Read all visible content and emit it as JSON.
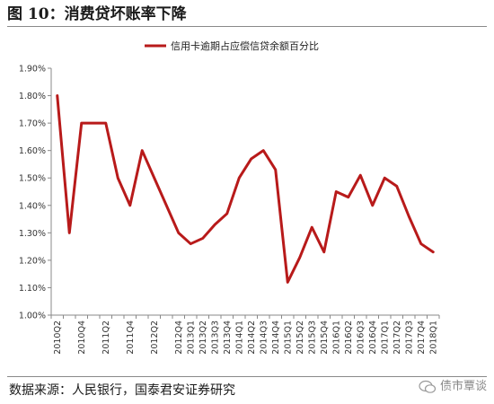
{
  "figure": {
    "title": "图 10：消费贷坏账率下降",
    "source": "数据来源：人民银行，国泰君安证券研究",
    "watermark": "债市覃谈"
  },
  "colors": {
    "series": "#b81a1a",
    "axis": "#888888",
    "text": "#333333"
  },
  "chart_data": {
    "type": "line",
    "title": "",
    "xlabel": "",
    "ylabel": "",
    "ylim": [
      1.0,
      1.9
    ],
    "y_ticks": [
      "1.00%",
      "1.10%",
      "1.20%",
      "1.30%",
      "1.40%",
      "1.50%",
      "1.60%",
      "1.70%",
      "1.80%",
      "1.90%"
    ],
    "y_tick_values": [
      1.0,
      1.1,
      1.2,
      1.3,
      1.4,
      1.5,
      1.6,
      1.7,
      1.8,
      1.9
    ],
    "grid": false,
    "legend_position": "top-center",
    "x": [
      "2010Q2",
      "2010Q3",
      "2010Q4",
      "2011Q1",
      "2011Q2",
      "2011Q3",
      "2011Q4",
      "2012Q1",
      "2012Q2",
      "2012Q3",
      "2012Q4",
      "2013Q1",
      "2013Q2",
      "2013Q3",
      "2013Q4",
      "2014Q1",
      "2014Q2",
      "2014Q3",
      "2014Q4",
      "2015Q1",
      "2015Q2",
      "2015Q3",
      "2015Q4",
      "2016Q1",
      "2016Q2",
      "2016Q3",
      "2016Q4",
      "2017Q1",
      "2017Q2",
      "2017Q3",
      "2017Q4",
      "2018Q1"
    ],
    "x_tick_labels": [
      "2010Q2",
      "2010Q4",
      "2011Q2",
      "2011Q4",
      "2012Q2",
      "2012Q4",
      "2013Q2",
      "2013Q4",
      "2014Q2",
      "2014Q4",
      "2015Q2",
      "2015Q4",
      "2016Q2",
      "2016Q4",
      "2017Q2",
      "2017Q4",
      "2013Q1",
      "2013Q3",
      "2014Q1",
      "2014Q3",
      "2015Q1",
      "2015Q3",
      "2016Q1",
      "2016Q3",
      "2017Q1",
      "2017Q3",
      "2018Q1"
    ],
    "series": [
      {
        "name": "信用卡逾期占应偿信贷余额百分比",
        "values": [
          1.8,
          1.3,
          1.7,
          1.7,
          1.7,
          1.5,
          1.4,
          1.6,
          1.5,
          1.4,
          1.3,
          1.26,
          1.28,
          1.33,
          1.37,
          1.5,
          1.57,
          1.6,
          1.53,
          1.12,
          1.21,
          1.32,
          1.23,
          1.45,
          1.43,
          1.51,
          1.4,
          1.5,
          1.47,
          1.36,
          1.26,
          1.23
        ]
      }
    ]
  }
}
